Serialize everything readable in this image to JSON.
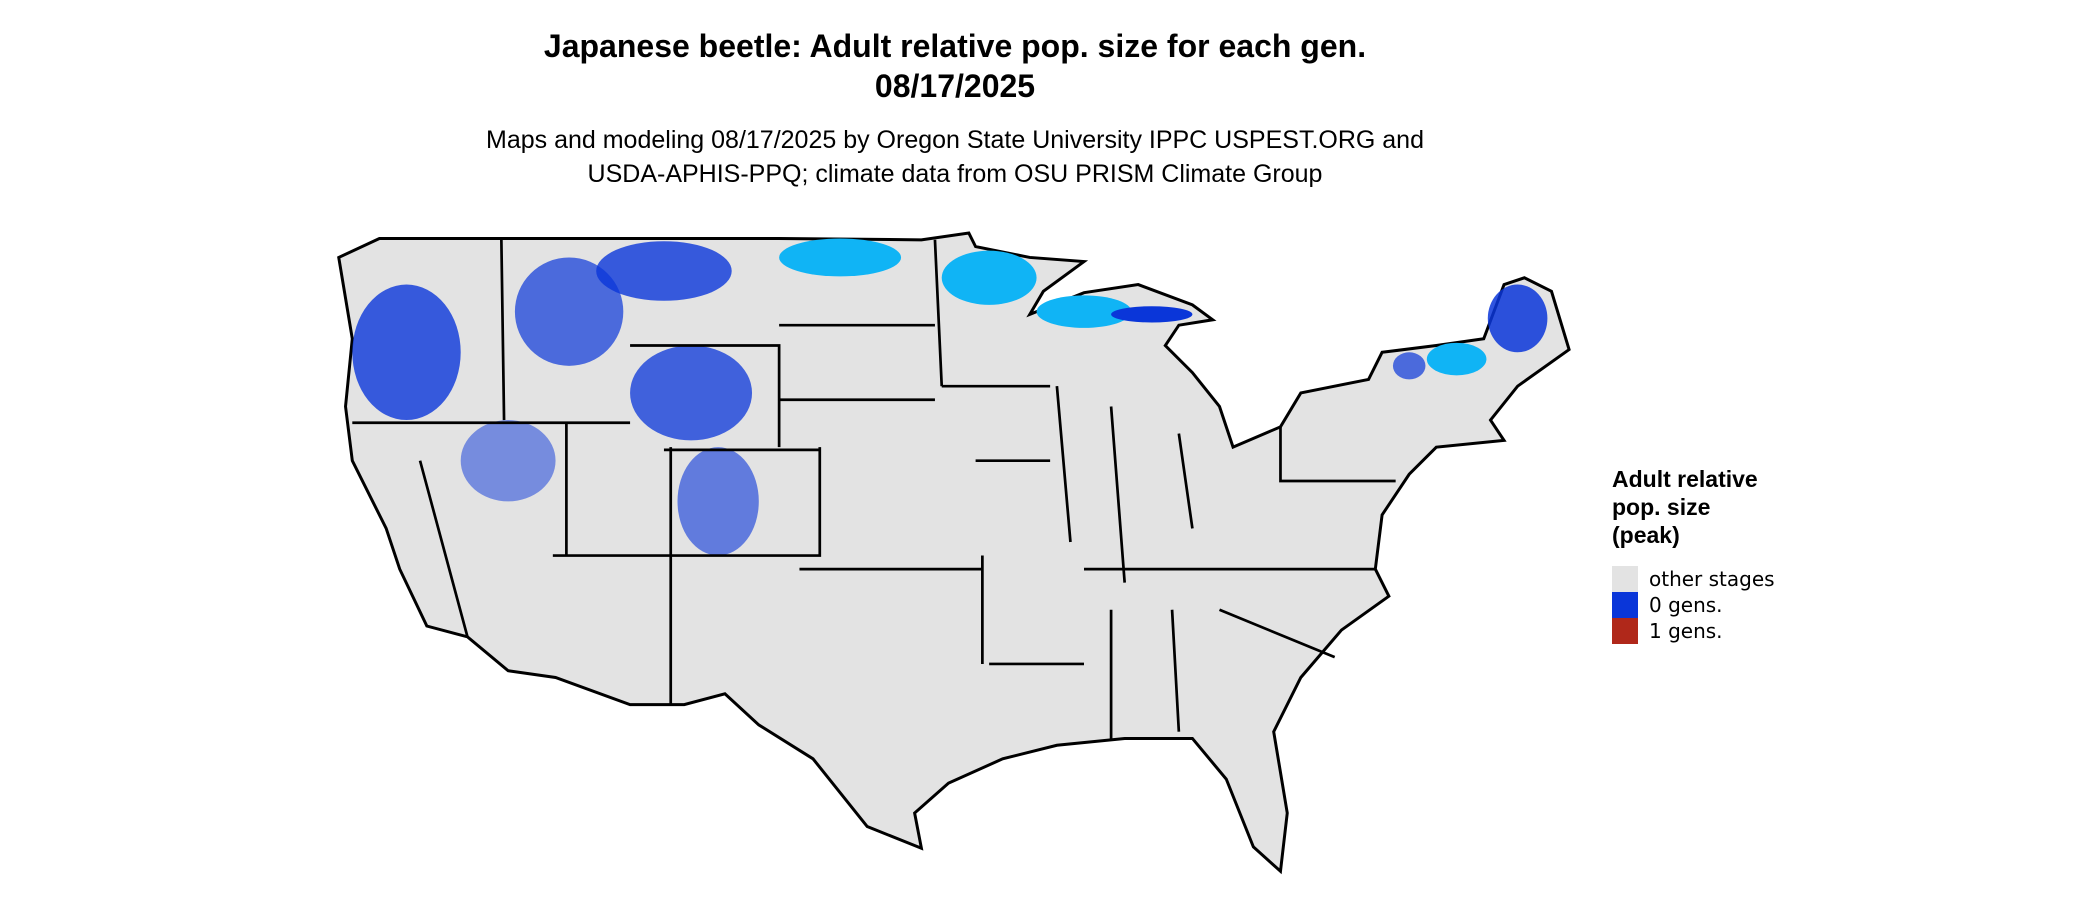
{
  "header": {
    "title_lines": [
      "Japanese beetle: Adult relative pop. size for each gen.",
      "08/17/2025"
    ],
    "subtitle_lines": [
      "Maps and modeling 08/17/2025 by Oregon State University IPPC USPEST.ORG and",
      "USDA-APHIS-PPQ; climate data from OSU PRISM Climate Group"
    ]
  },
  "legend": {
    "title_lines": [
      "Adult relative",
      "pop. size",
      "(peak)"
    ],
    "entries": [
      {
        "label": "other stages",
        "color": "#e3e3e3"
      },
      {
        "label": "0 gens.",
        "color": "#0a36d9"
      },
      {
        "label": "1 gens.",
        "color": "#b0281a"
      }
    ]
  }
}
